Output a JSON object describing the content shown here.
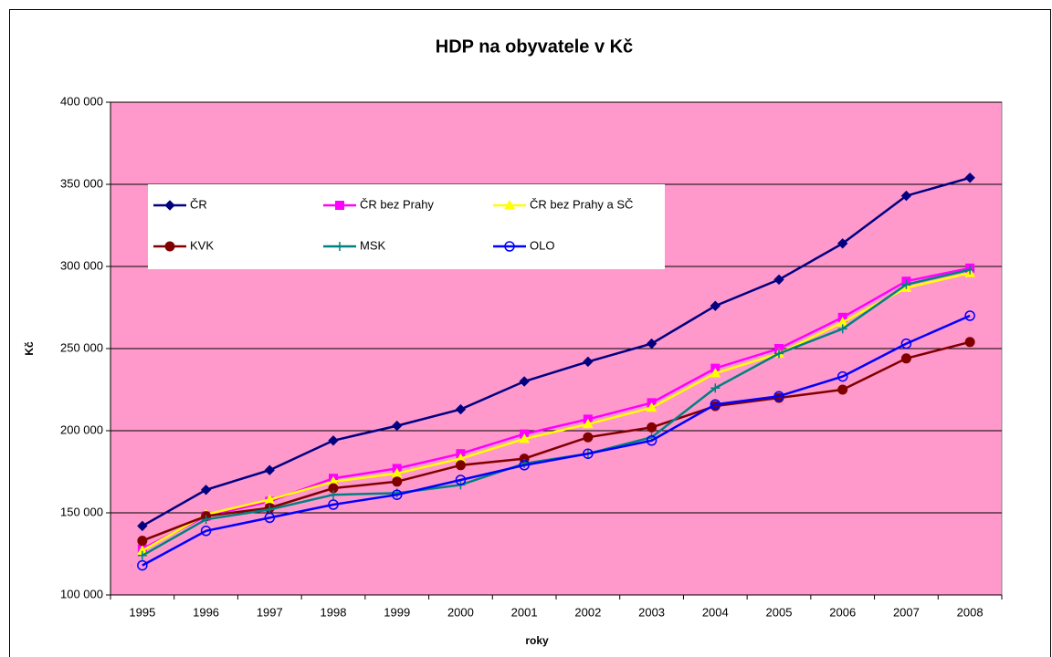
{
  "chart_data": {
    "type": "line",
    "title": "HDP na obyvatele v Kč",
    "xlabel": "roky",
    "ylabel": "Kč",
    "categories": [
      "1995",
      "1996",
      "1997",
      "1998",
      "1999",
      "2000",
      "2001",
      "2002",
      "2003",
      "2004",
      "2005",
      "2006",
      "2007",
      "2008"
    ],
    "ylim": [
      100000,
      400000
    ],
    "yticks": [
      {
        "value": 100000,
        "label": "100 000"
      },
      {
        "value": 150000,
        "label": "150 000"
      },
      {
        "value": 200000,
        "label": "200 000"
      },
      {
        "value": 250000,
        "label": "250 000"
      },
      {
        "value": 300000,
        "label": "300 000"
      },
      {
        "value": 350000,
        "label": "350 000"
      },
      {
        "value": 400000,
        "label": "400 000"
      }
    ],
    "grid": true,
    "plot_background": "#ff99cc",
    "series": [
      {
        "name": "ČR",
        "color": "#000080",
        "marker": "diamond",
        "values": [
          142000,
          164000,
          176000,
          194000,
          203000,
          213000,
          230000,
          242000,
          253000,
          276000,
          292000,
          314000,
          343000,
          354000
        ]
      },
      {
        "name": "ČR bez Prahy",
        "color": "#ff00ff",
        "marker": "square",
        "values": [
          128000,
          148000,
          157000,
          171000,
          177000,
          186000,
          198000,
          207000,
          217000,
          238000,
          250000,
          269000,
          291000,
          299000
        ]
      },
      {
        "name": "ČR bez Prahy a SČ",
        "color": "#ffff00",
        "marker": "triangle",
        "values": [
          127000,
          149000,
          158000,
          169000,
          174000,
          183000,
          195000,
          204000,
          214000,
          235000,
          247000,
          266000,
          287000,
          296000
        ]
      },
      {
        "name": "KVK",
        "color": "#800000",
        "marker": "circle",
        "values": [
          133000,
          148000,
          153000,
          165000,
          169000,
          179000,
          183000,
          196000,
          202000,
          215000,
          220000,
          225000,
          244000,
          254000
        ]
      },
      {
        "name": "MSK",
        "color": "#008080",
        "marker": "plus",
        "values": [
          124000,
          146000,
          152000,
          161000,
          162000,
          167000,
          180000,
          186000,
          196000,
          226000,
          247000,
          262000,
          289000,
          298000
        ]
      },
      {
        "name": "OLO",
        "color": "#0000ff",
        "marker": "open-circle",
        "values": [
          118000,
          139000,
          147000,
          155000,
          161000,
          170000,
          179000,
          186000,
          194000,
          216000,
          221000,
          233000,
          253000,
          270000
        ]
      }
    ]
  }
}
